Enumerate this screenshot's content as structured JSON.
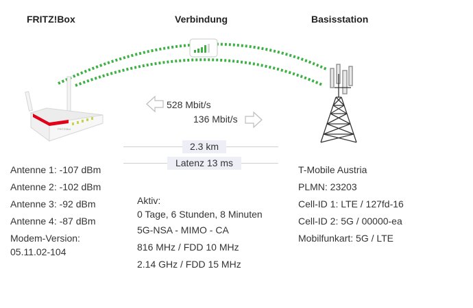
{
  "columns": {
    "fritzbox": "FRITZ!Box",
    "verbindung": "Verbindung",
    "basisstation": "Basisstation"
  },
  "device_label": "FRITZ!Box",
  "speeds": {
    "download": "528 Mbit/s",
    "upload": "136 Mbit/s"
  },
  "distance": "2.3 km",
  "latency": "Latenz 13 ms",
  "signal_level": 0.8,
  "left_info": {
    "antenna1": "Antenne 1: -107 dBm",
    "antenna2": "Antenne 2: -102 dBm",
    "antenna3": "Antenne 3: -92 dBm",
    "antenna4": "Antenne 4: -87 dBm",
    "modem_label": "Modem-Version:",
    "modem_value": "05.11.02-104"
  },
  "center_info": {
    "active_label": "Aktiv:",
    "uptime": "0 Tage, 6 Stunden, 8 Minuten",
    "mode": "5G-NSA - MIMO - CA",
    "band1": "816 MHz / FDD 10 MHz",
    "band2": "2.14 GHz / FDD 15 MHz"
  },
  "right_info": {
    "provider": "T-Mobile Austria",
    "plmn": "PLMN: 23203",
    "cell1": "Cell-ID 1: LTE / 127fd-16",
    "cell2": "Cell-ID 2: 5G / 00000-ea",
    "radio": "Mobilfunkart: 5G / LTE"
  },
  "colors": {
    "signal_green": "#3cb043",
    "router_red": "#e0001a",
    "tower_dark": "#333333"
  }
}
